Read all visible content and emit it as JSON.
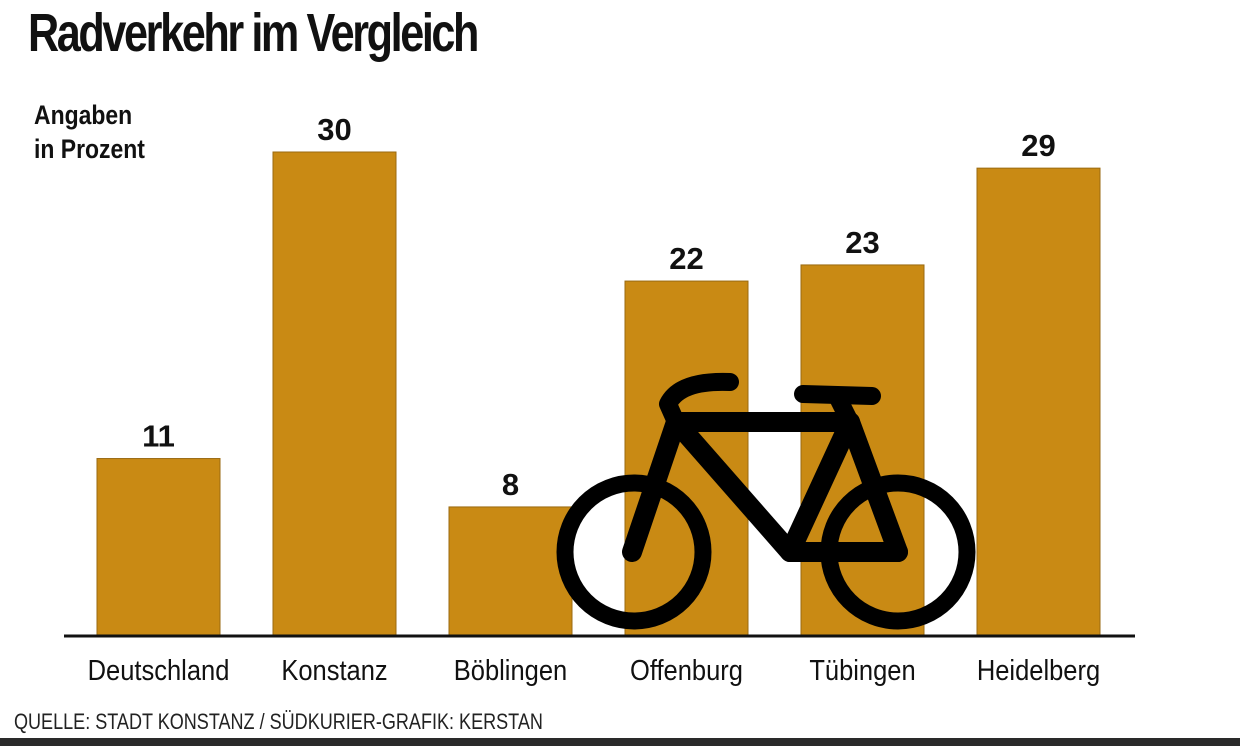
{
  "header": {
    "title": "Radverkehr im Vergleich",
    "unit_line1": "Angaben",
    "unit_line2": "in Prozent"
  },
  "footer": {
    "source": "QUELLE: STADT KONSTANZ / SÜDKURIER-GRAFIK: KERSTAN"
  },
  "colors": {
    "bar": "#c98a14",
    "bar_outline": "#9a6a10",
    "baseline": "#111111",
    "bicycle": "#000000"
  },
  "icons": [
    "bicycle-icon"
  ],
  "chart_data": {
    "type": "bar",
    "title": "Radverkehr im Vergleich",
    "ylabel": "Angaben in Prozent",
    "xlabel": "",
    "categories": [
      "Deutschland",
      "Konstanz",
      "Böblingen",
      "Offenburg",
      "Tübingen",
      "Heidelberg"
    ],
    "values": [
      11,
      30,
      8,
      22,
      23,
      29
    ],
    "ylim": [
      0,
      30
    ],
    "grid": false,
    "data_labels": true
  }
}
